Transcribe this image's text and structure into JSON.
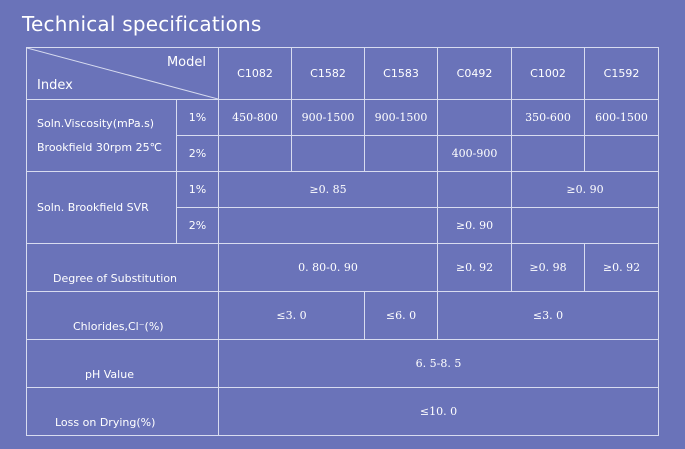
{
  "title": "Technical specifications",
  "header": {
    "model_label": "Model",
    "index_label": "Index",
    "models": [
      "C1082",
      "C1582",
      "C1583",
      "C0492",
      "C1002",
      "C1592"
    ]
  },
  "rows": {
    "viscosity": {
      "label_line1": "Soln.Viscosity(mPa.s)",
      "label_line2": "Brookfield 30rpm 25℃",
      "conc1": "1%",
      "conc2": "2%",
      "r1": [
        "450-800",
        "900-1500",
        "900-1500",
        "",
        "350-600",
        "600-1500"
      ],
      "r2_c0492": "400-900"
    },
    "svr": {
      "label": "Soln. Brookfield SVR",
      "conc1": "1%",
      "conc2": "2%",
      "r1_group_a": "≥0. 85",
      "r1_group_b": "≥0. 90",
      "r2_c0492": "≥0. 90"
    },
    "ds": {
      "label": "Degree of Substitution",
      "group_a": "0. 80-0. 90",
      "c0492": "≥0. 92",
      "c1002": "≥0. 98",
      "c1592": "≥0. 92"
    },
    "chlorides": {
      "label": "Chlorides,Cl⁻(%)",
      "group_a": "≤3. 0",
      "c1583": "≤6. 0",
      "group_b": "≤3. 0"
    },
    "ph": {
      "label": "pH Value",
      "value": "6. 5-8. 5"
    },
    "lod": {
      "label": "Loss on Drying(%)",
      "value": "≤10. 0"
    }
  }
}
